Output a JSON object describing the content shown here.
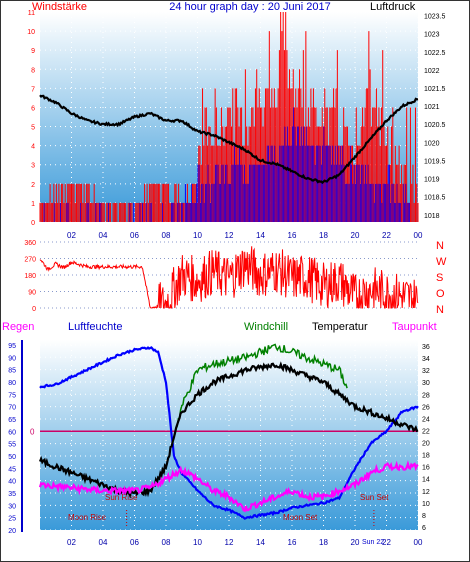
{
  "header": {
    "left_label": "Windstärke",
    "title": "24 hour graph day : 20 Juni 2017",
    "right_label": "Luftdruck"
  },
  "panel3_labels": {
    "regen": "Regen",
    "luftfeuchte": "Luftfeuchte",
    "windchill": "Windchill",
    "temperatur": "Temperatur",
    "taupunkt": "Taupunkt"
  },
  "annotations": {
    "moon_rise": "Moon Rise",
    "sun_rise": "Sun Rise",
    "moon_set": "Moon Set",
    "sun_set": "Sun Set",
    "sun_22": "Sun 22"
  },
  "colors": {
    "wind_gust": "#ff0000",
    "wind_avg": "#0000ff",
    "pressure": "#000000",
    "direction": "#ff0000",
    "humidity": "#0000ff",
    "windchill": "#008000",
    "temperature": "#000000",
    "dewpoint": "#ff00ff",
    "zero_line": "#cc0066",
    "axis_text": "#ff0000",
    "axis_text_blue": "#0000cc",
    "panel_bg_top": "#ffffff",
    "panel_bg_bottom": "#3399dd"
  },
  "chart_data": [
    {
      "type": "line",
      "panel": "wind_pressure",
      "x_ticks": [
        "02",
        "04",
        "06",
        "08",
        "10",
        "12",
        "14",
        "16",
        "18",
        "20",
        "22",
        "00"
      ],
      "left_axis": {
        "label": "Windstärke",
        "ticks": [
          "0",
          "1",
          "2",
          "3",
          "4",
          "5",
          "6",
          "7",
          "8",
          "9",
          "10",
          "11"
        ],
        "ylim": [
          0,
          11
        ]
      },
      "right_axis": {
        "label": "Luftdruck",
        "ticks": [
          "1018",
          "1018.5",
          "1019",
          "1019.5",
          "1020",
          "1020.5",
          "1021",
          "1021.5",
          "1022",
          "1022.5",
          "1023",
          "1023.5"
        ],
        "ylim": [
          1017.8,
          1023.6
        ]
      },
      "series": [
        {
          "name": "Luftdruck",
          "axis": "right",
          "x": [
            0,
            1,
            2,
            3,
            4,
            5,
            6,
            7,
            8,
            9,
            10,
            11,
            12,
            13,
            14,
            15,
            16,
            17,
            18,
            19,
            20,
            21,
            22,
            23,
            24
          ],
          "values": [
            1021.3,
            1021.1,
            1020.8,
            1020.6,
            1020.5,
            1020.5,
            1020.7,
            1020.8,
            1020.6,
            1020.6,
            1020.3,
            1020.2,
            1020.0,
            1019.8,
            1019.5,
            1019.4,
            1019.2,
            1019.0,
            1018.9,
            1019.1,
            1019.6,
            1020.1,
            1020.6,
            1021.0,
            1021.2
          ]
        },
        {
          "name": "Wind gust",
          "axis": "left",
          "x": [
            0,
            2,
            4,
            6,
            8,
            9,
            10,
            10.5,
            11,
            12,
            13,
            14,
            15,
            15.5,
            16,
            17,
            18,
            19,
            20,
            21,
            22,
            23,
            23.9
          ],
          "values": [
            1,
            2,
            1,
            1,
            2,
            1,
            2,
            5,
            4,
            6,
            5,
            7,
            6,
            11,
            7,
            6,
            6,
            5,
            4,
            7,
            4,
            3,
            2
          ]
        },
        {
          "name": "Wind average",
          "axis": "left",
          "x": [
            0,
            8,
            9,
            10,
            11,
            12,
            13,
            14,
            15,
            16,
            17,
            18,
            19,
            20,
            21,
            22,
            23,
            23.9
          ],
          "values": [
            0,
            0,
            1,
            2,
            2,
            3,
            3,
            3,
            4,
            5,
            4,
            4,
            3,
            3,
            2,
            2,
            1,
            0
          ]
        }
      ]
    },
    {
      "type": "line",
      "panel": "wind_direction",
      "left_ticks": [
        "0",
        "90",
        "180",
        "270",
        "360"
      ],
      "right_labels": [
        "N",
        "W",
        "S",
        "O",
        "N"
      ],
      "ylim": [
        0,
        360
      ],
      "series": [
        {
          "name": "Windrichtung",
          "x": [
            0,
            0.5,
            1,
            1.5,
            2,
            3,
            4,
            5,
            6,
            6.5,
            7,
            8,
            9,
            10,
            11,
            12,
            13,
            14,
            15,
            16,
            17,
            18,
            19,
            20,
            21,
            22,
            23,
            24
          ],
          "values": [
            270,
            210,
            240,
            220,
            250,
            225,
            225,
            225,
            225,
            225,
            0,
            20,
            180,
            150,
            200,
            160,
            240,
            180,
            210,
            160,
            170,
            120,
            150,
            60,
            100,
            80,
            60,
            40
          ]
        }
      ]
    },
    {
      "type": "line",
      "panel": "temp_humidity",
      "x_ticks": [
        "02",
        "04",
        "06",
        "08",
        "10",
        "12",
        "14",
        "16",
        "18",
        "20",
        "22",
        "00"
      ],
      "left_axis": {
        "label": "Luftfeuchte",
        "ticks": [
          "20",
          "25",
          "30",
          "35",
          "40",
          "45",
          "50",
          "55",
          "60",
          "65",
          "70",
          "75",
          "80",
          "85",
          "90",
          "95"
        ],
        "ylim": [
          20,
          97
        ]
      },
      "right_axis": {
        "ticks": [
          "6",
          "8",
          "10",
          "12",
          "14",
          "16",
          "18",
          "20",
          "22",
          "24",
          "26",
          "28",
          "30",
          "32",
          "34",
          "36"
        ],
        "ylim": [
          5.5,
          37
        ]
      },
      "zero_label": "0",
      "series": [
        {
          "name": "Luftfeuchte",
          "axis": "left",
          "x": [
            0,
            1,
            2,
            3,
            4,
            5,
            6,
            7,
            7.5,
            8,
            8.5,
            9,
            10,
            11,
            12,
            13,
            14,
            15,
            16,
            17,
            18,
            19,
            20,
            21,
            22,
            23,
            24
          ],
          "values": [
            78,
            79,
            82,
            85,
            88,
            91,
            93,
            94,
            92,
            80,
            50,
            43,
            36,
            30,
            28,
            25,
            26,
            27,
            29,
            30,
            31,
            33,
            45,
            55,
            60,
            68,
            70
          ]
        },
        {
          "name": "Temperatur",
          "axis": "right",
          "x": [
            0,
            1,
            2,
            3,
            4,
            5,
            6,
            7,
            8,
            8.5,
            9,
            10,
            11,
            12,
            13,
            14,
            15,
            16,
            17,
            18,
            19,
            20,
            21,
            22,
            23,
            24
          ],
          "values": [
            17,
            16,
            15,
            14,
            13,
            12,
            11.5,
            12,
            16,
            21,
            25,
            28,
            30,
            31,
            32,
            32.5,
            33,
            32,
            31,
            30,
            28,
            26,
            25,
            24,
            23,
            22
          ]
        },
        {
          "name": "Windchill",
          "axis": "right",
          "x": [
            8.5,
            9,
            10,
            11,
            12,
            13,
            14,
            15,
            16,
            17,
            18,
            19,
            19.5
          ],
          "values": [
            21,
            26,
            32,
            33,
            33.5,
            34,
            35,
            36,
            35,
            34,
            33,
            32,
            29
          ]
        },
        {
          "name": "Taupunkt",
          "axis": "right",
          "x": [
            0,
            2,
            4,
            6,
            7,
            8,
            9,
            10,
            11,
            12,
            13,
            14,
            15,
            16,
            17,
            18,
            19,
            20,
            21,
            22,
            23,
            24
          ],
          "values": [
            13,
            12.5,
            12,
            12,
            12.5,
            14,
            15.5,
            14,
            12,
            11,
            9,
            10,
            11,
            12,
            11,
            11,
            12,
            13,
            15,
            16,
            16,
            16
          ]
        }
      ]
    }
  ]
}
